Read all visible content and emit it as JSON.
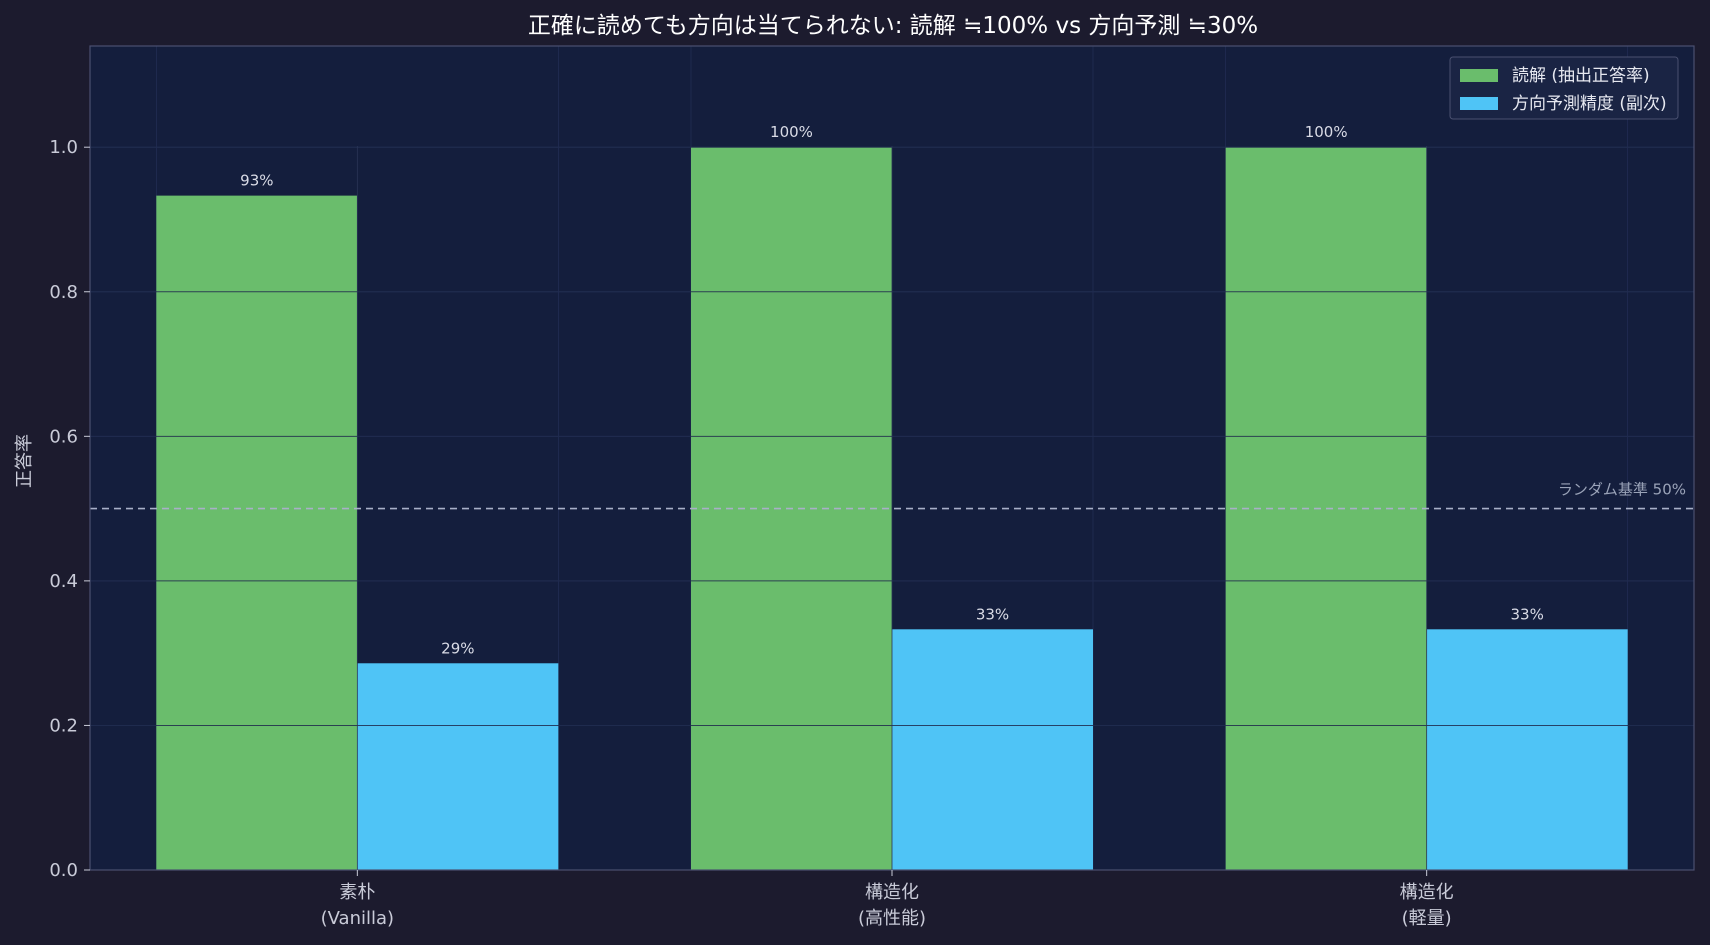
{
  "chart_data": {
    "type": "bar",
    "title": "正確に読めても方向は当てられない: 読解 ≒100% vs 方向予測 ≒30%",
    "xlabel": "",
    "ylabel": "正答率",
    "ylim": [
      0,
      1.14
    ],
    "yticks": [
      0.0,
      0.2,
      0.4,
      0.6,
      0.8,
      1.0
    ],
    "ytick_labels": [
      "0.0",
      "0.2",
      "0.4",
      "0.6",
      "0.8",
      "1.0"
    ],
    "categories": [
      [
        "素朴",
        "(Vanilla)"
      ],
      [
        "構造化",
        "(高性能)"
      ],
      [
        "構造化",
        "(軽量)"
      ]
    ],
    "series": [
      {
        "name": "読解 (抽出正答率)",
        "color": "#6abd6c",
        "values": [
          0.933,
          1.0,
          1.0
        ],
        "labels": [
          "93%",
          "100%",
          "100%"
        ]
      },
      {
        "name": "方向予測精度 (副次)",
        "color": "#4fc4f6",
        "values": [
          0.286,
          0.333,
          0.333
        ],
        "labels": [
          "29%",
          "33%",
          "33%"
        ]
      }
    ],
    "reference_line": {
      "value": 0.5,
      "label": "ランダム基準 50%",
      "color": "#a8b0c8"
    },
    "grid": true,
    "legend_position": "top-right",
    "colors": {
      "background": "#1c1b2e",
      "plot_background": "#141e3d",
      "axis": "#4a5070",
      "grid": "#26315a"
    }
  }
}
